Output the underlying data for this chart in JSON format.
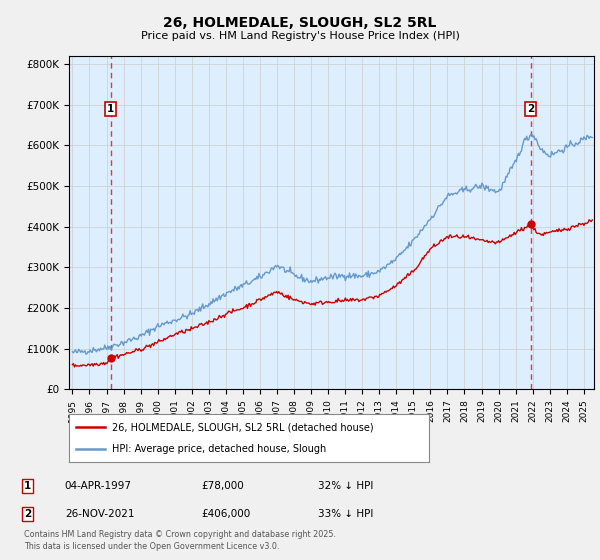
{
  "title": "26, HOLMEDALE, SLOUGH, SL2 5RL",
  "subtitle": "Price paid vs. HM Land Registry's House Price Index (HPI)",
  "ylabel_ticks": [
    "£0",
    "£100K",
    "£200K",
    "£300K",
    "£400K",
    "£500K",
    "£600K",
    "£700K",
    "£800K"
  ],
  "ytick_values": [
    0,
    100000,
    200000,
    300000,
    400000,
    500000,
    600000,
    700000,
    800000
  ],
  "ylim": [
    0,
    820000
  ],
  "xlim_start": 1994.8,
  "xlim_end": 2025.6,
  "legend_entry1": "26, HOLMEDALE, SLOUGH, SL2 5RL (detached house)",
  "legend_entry2": "HPI: Average price, detached house, Slough",
  "marker1_date": 1997.26,
  "marker1_price": 78000,
  "marker2_date": 2021.9,
  "marker2_price": 406000,
  "sale_color": "#cc0000",
  "hpi_color": "#6699cc",
  "vline_color": "#ee3333",
  "footnote1": "Contains HM Land Registry data © Crown copyright and database right 2025.",
  "footnote2": "This data is licensed under the Open Government Licence v3.0.",
  "background_color": "#f0f0f0",
  "plot_bg_color": "#ddeeff"
}
